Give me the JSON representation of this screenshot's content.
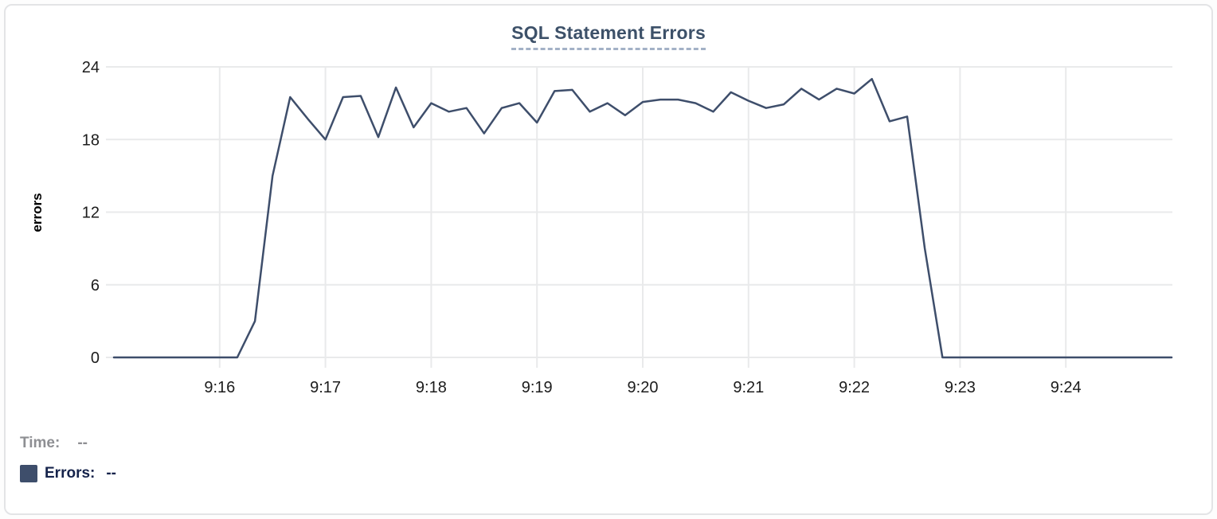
{
  "chart_data": {
    "type": "line",
    "title": "SQL Statement Errors",
    "ylabel": "errors",
    "xlabel": "",
    "ylim": [
      0,
      24
    ],
    "yticks": [
      0,
      6,
      12,
      18,
      24
    ],
    "xtick_labels": [
      "9:16",
      "9:17",
      "9:18",
      "9:19",
      "9:20",
      "9:21",
      "9:22",
      "9:23",
      "9:24"
    ],
    "x_start": "9:15:00",
    "x_end": "9:25:00",
    "x_interval_seconds": 10,
    "grid": true,
    "legend_position": "bottom-left",
    "series": [
      {
        "name": "Errors",
        "color": "#3e4e6b",
        "values": [
          0,
          0,
          0,
          0,
          0,
          0,
          0,
          0,
          3,
          15,
          21.5,
          19.7,
          18,
          21.5,
          21.6,
          18.2,
          22.3,
          19,
          21,
          20.3,
          20.6,
          18.5,
          20.6,
          21,
          19.4,
          22,
          22.1,
          20.3,
          21,
          20,
          21.1,
          21.3,
          21.3,
          21,
          20.3,
          21.9,
          21.2,
          20.6,
          20.9,
          22.2,
          21.3,
          22.2,
          21.8,
          23,
          19.5,
          19.9,
          9,
          0,
          0,
          0,
          0,
          0,
          0,
          0,
          0,
          0,
          0,
          0,
          0,
          0,
          0
        ]
      }
    ]
  },
  "readout": {
    "time_label": "Time:",
    "time_value": "--",
    "errors_label": "Errors:",
    "errors_value": "--",
    "swatch_color": "#3e4e6b"
  },
  "colors": {
    "title": "#3d5169",
    "title_underline": "#a3b1c6",
    "grid": "#e9eaeb",
    "tick_text": "#1c1c1c",
    "axis_label": "#000000",
    "time_text": "#8e8f93",
    "errors_text": "#15234b",
    "card_border": "#e3e4e6"
  }
}
